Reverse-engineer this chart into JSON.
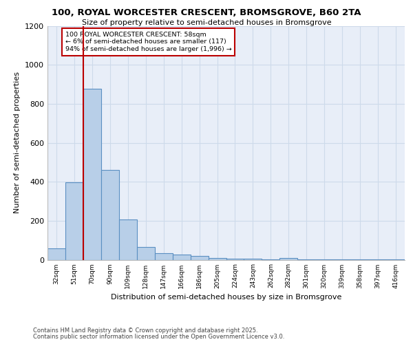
{
  "title_line1": "100, ROYAL WORCESTER CRESCENT, BROMSGROVE, B60 2TA",
  "title_line2": "Size of property relative to semi-detached houses in Bromsgrove",
  "xlabel": "Distribution of semi-detached houses by size in Bromsgrove",
  "ylabel": "Number of semi-detached properties",
  "categories": [
    "32sqm",
    "51sqm",
    "70sqm",
    "90sqm",
    "109sqm",
    "128sqm",
    "147sqm",
    "166sqm",
    "186sqm",
    "205sqm",
    "224sqm",
    "243sqm",
    "262sqm",
    "282sqm",
    "301sqm",
    "320sqm",
    "339sqm",
    "358sqm",
    "397sqm",
    "416sqm"
  ],
  "values": [
    60,
    397,
    878,
    460,
    207,
    65,
    35,
    25,
    18,
    10,
    7,
    5,
    3,
    8,
    2,
    1,
    1,
    1,
    1,
    1
  ],
  "bar_color": "#b8cfe8",
  "bar_edge_color": "#5a8fc2",
  "grid_color": "#cddaea",
  "background_color": "#e8eef8",
  "vline_color": "#bb0000",
  "annotation_text": "100 ROYAL WORCESTER CRESCENT: 58sqm\n← 6% of semi-detached houses are smaller (117)\n94% of semi-detached houses are larger (1,996) →",
  "annotation_box_facecolor": "#ffffff",
  "annotation_box_edge_color": "#bb0000",
  "ylim": [
    0,
    1200
  ],
  "yticks": [
    0,
    200,
    400,
    600,
    800,
    1000,
    1200
  ],
  "footer_line1": "Contains HM Land Registry data © Crown copyright and database right 2025.",
  "footer_line2": "Contains public sector information licensed under the Open Government Licence v3.0."
}
